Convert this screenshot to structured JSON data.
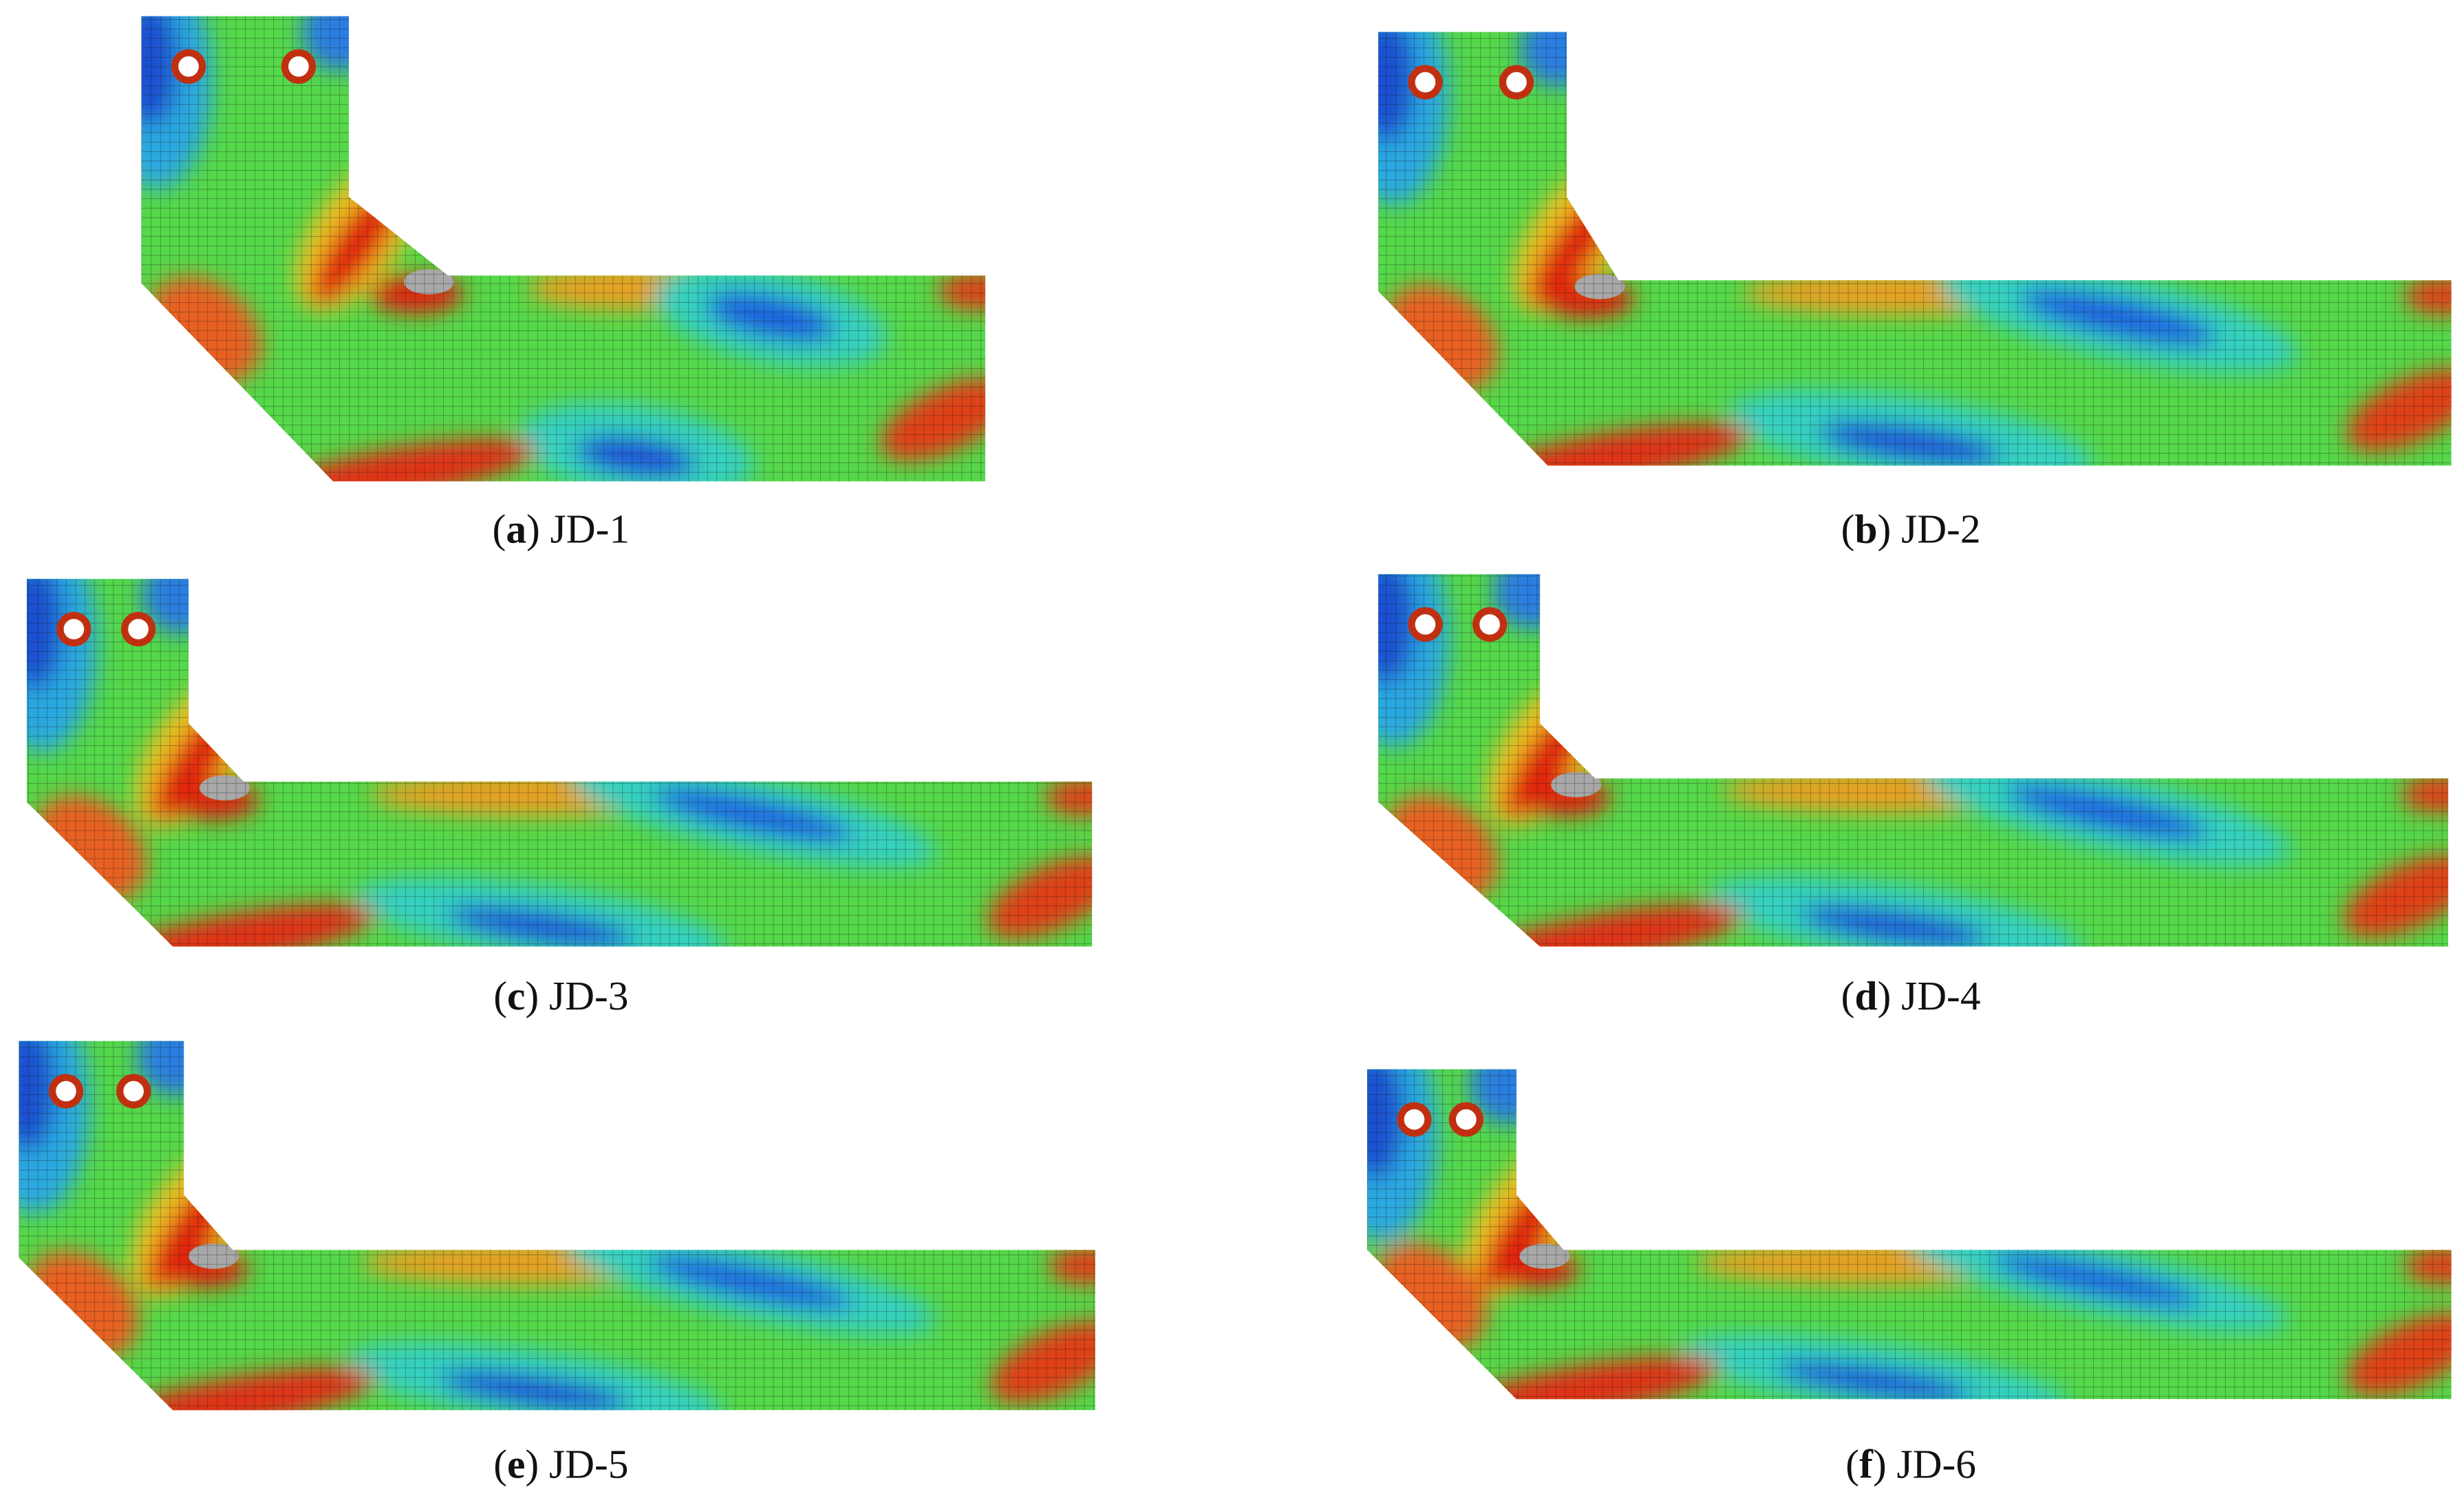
{
  "panels": [
    {
      "open": "(",
      "letter": "a",
      "close": ")",
      "label": "JD-1"
    },
    {
      "open": "(",
      "letter": "b",
      "close": ")",
      "label": "JD-2"
    },
    {
      "open": "(",
      "letter": "c",
      "close": ")",
      "label": "JD-3"
    },
    {
      "open": "(",
      "letter": "d",
      "close": ")",
      "label": "JD-4"
    },
    {
      "open": "(",
      "letter": "e",
      "close": ")",
      "label": "JD-5"
    },
    {
      "open": "(",
      "letter": "f",
      "close": ")",
      "label": "JD-6"
    }
  ]
}
